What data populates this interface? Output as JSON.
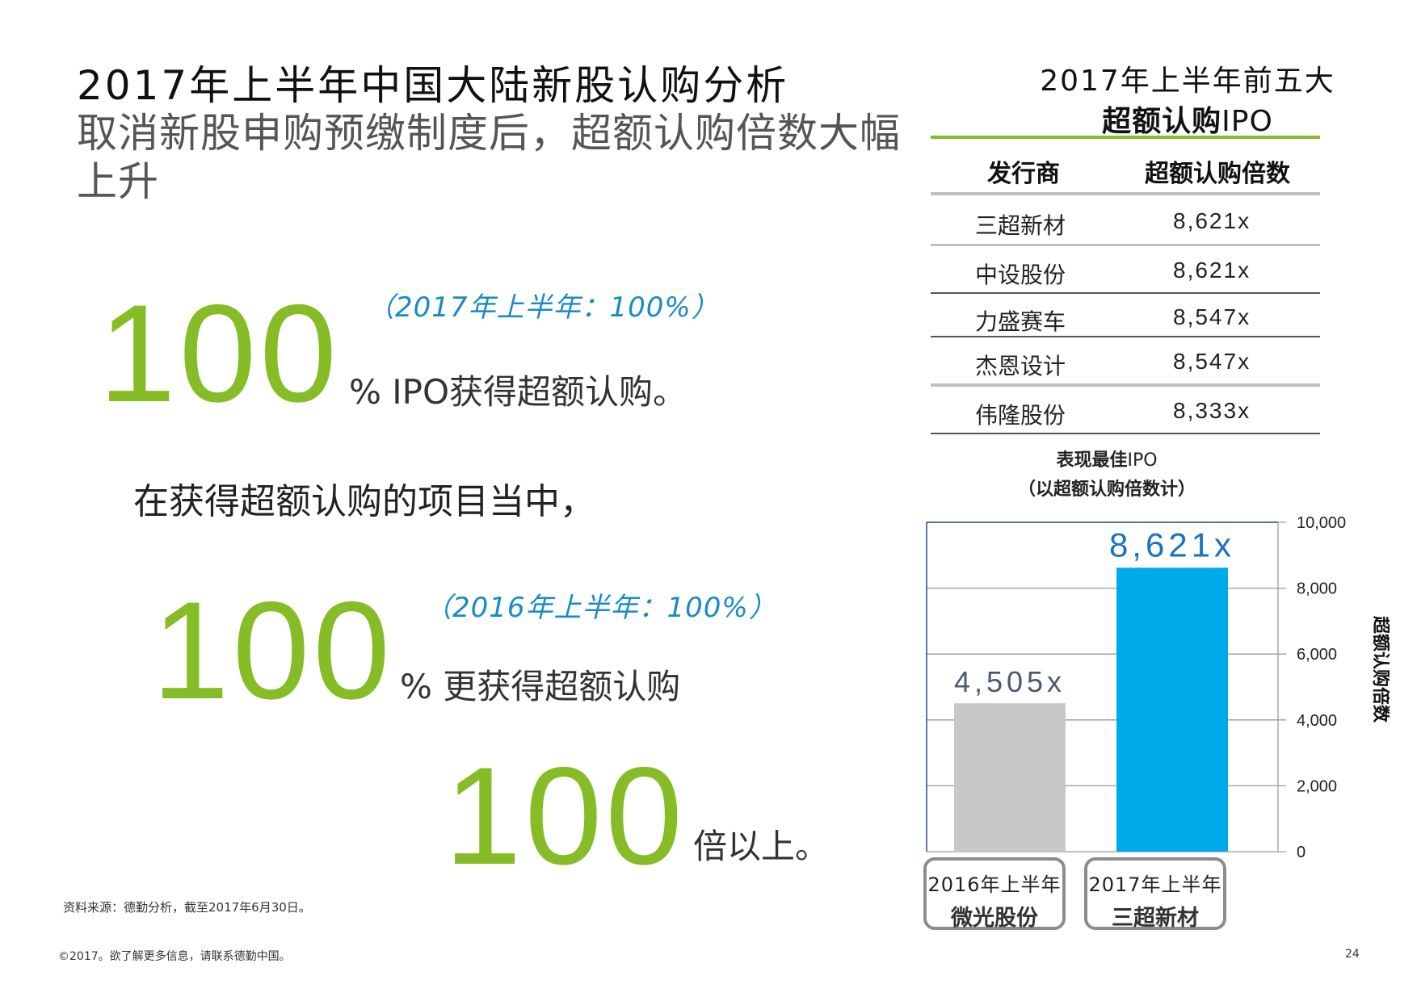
{
  "page": {
    "title": "2017年上半年中国大陆新股认购分析",
    "subtitle": "取消新股申购预缴制度后，超额认购倍数大幅上升",
    "source": "资料来源：德勤分析，截至2017年6月30日。",
    "footer": "©2017。欲了解更多信息，请联系德勤中国。",
    "page_number": "24"
  },
  "stats": {
    "s1": {
      "value": "100",
      "text": "% IPO获得超额认购。",
      "note": "（2017年上半年：100%）"
    },
    "mid_text": "在获得超额认购的项目当中，",
    "s2": {
      "value": "100",
      "text": "% 更获得超额认购",
      "note": "（2016年上半年：100%）"
    },
    "s3": {
      "value": "100",
      "text": "倍以上。"
    }
  },
  "top5": {
    "title_line1": "2017年上半年前五大",
    "title_line2_bold": "超额认购",
    "title_line2_regular": "IPO",
    "headers": {
      "issuer": "发行商",
      "multiple": "超额认购倍数"
    },
    "rows": [
      {
        "issuer": "三超新材",
        "multiple": "8,621x"
      },
      {
        "issuer": "中设股份",
        "multiple": "8,621x"
      },
      {
        "issuer": "力盛赛车",
        "multiple": "8,547x"
      },
      {
        "issuer": "杰恩设计",
        "multiple": "8,547x"
      },
      {
        "issuer": "伟隆股份",
        "multiple": "8,333x"
      }
    ]
  },
  "chart_data": {
    "type": "bar",
    "title": "表现最佳IPO",
    "title_bold": "表现最佳",
    "title_regular": "IPO",
    "subtitle": "（以超额认购倍数计）",
    "ylabel": "超额认购倍数",
    "ylim": [
      0,
      10000
    ],
    "yticks": [
      0,
      2000,
      4000,
      6000,
      8000,
      10000
    ],
    "ytick_labels": [
      "0",
      "2,000",
      "4,000",
      "6,000",
      "8,000",
      "10,000"
    ],
    "categories": [
      {
        "period": "2016年上半年",
        "company": "微光股份"
      },
      {
        "period": "2017年上半年",
        "company": "三超新材"
      }
    ],
    "values": [
      4505,
      8621
    ],
    "value_labels": [
      "4,505x",
      "8,621x"
    ],
    "grid": true,
    "colors": {
      "bar_2016": "#c7c8ca",
      "bar_2017": "#00a9ea",
      "label_2016": "#4a5a70",
      "label_2017": "#1874c0"
    }
  },
  "colors": {
    "accent_green": "#86bc25",
    "note_blue": "#1a8bc5"
  }
}
